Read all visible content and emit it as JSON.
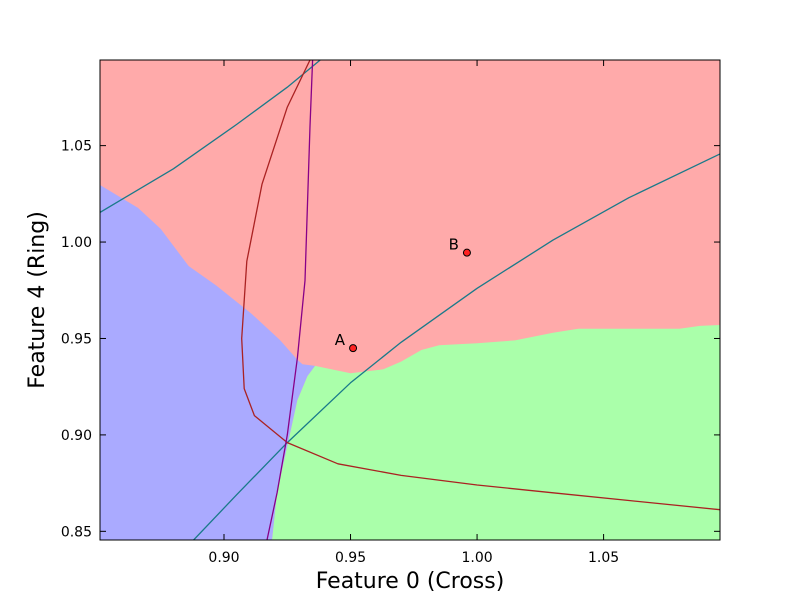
{
  "chart_data": {
    "type": "decision-boundary",
    "xlabel": "Feature 0 (Cross)",
    "ylabel": "Feature 4 (Ring)",
    "xlim": [
      0.851,
      1.096
    ],
    "ylim": [
      0.8455,
      1.0944
    ],
    "x_ticks": [
      {
        "value": 0.9,
        "label": "0.90"
      },
      {
        "value": 0.95,
        "label": "0.95"
      },
      {
        "value": 1.0,
        "label": "1.00"
      },
      {
        "value": 1.05,
        "label": "1.05"
      }
    ],
    "y_ticks": [
      {
        "value": 0.85,
        "label": "0.85"
      },
      {
        "value": 0.9,
        "label": "0.90"
      },
      {
        "value": 0.95,
        "label": "0.95"
      },
      {
        "value": 1.0,
        "label": "1.00"
      },
      {
        "value": 1.05,
        "label": "1.05"
      }
    ],
    "regions": {
      "red": "#ffaaaa",
      "blue": "#aaaaff",
      "green": "#aaffaa",
      "blue_red_boundary": [
        [
          0.851,
          1.0296
        ],
        [
          0.866,
          1.0177
        ],
        [
          0.875,
          1.0068
        ],
        [
          0.886,
          0.9876
        ],
        [
          0.897,
          0.9774
        ],
        [
          0.911,
          0.9627
        ],
        [
          0.922,
          0.9493
        ],
        [
          0.929,
          0.939
        ],
        [
          0.931,
          0.9366
        ],
        [
          0.936,
          0.9358
        ]
      ],
      "blue_green_boundary": [
        [
          0.936,
          0.9358
        ],
        [
          0.933,
          0.9305
        ],
        [
          0.929,
          0.918
        ],
        [
          0.926,
          0.9
        ],
        [
          0.924,
          0.888
        ],
        [
          0.921,
          0.87
        ],
        [
          0.919,
          0.8455
        ]
      ],
      "green_red_boundary": [
        [
          0.936,
          0.9358
        ],
        [
          0.95,
          0.932
        ],
        [
          0.963,
          0.934
        ],
        [
          0.97,
          0.938
        ],
        [
          0.978,
          0.944
        ],
        [
          0.985,
          0.9465
        ],
        [
          1.0,
          0.9475
        ],
        [
          1.015,
          0.949
        ],
        [
          1.03,
          0.953
        ],
        [
          1.04,
          0.955
        ],
        [
          1.08,
          0.955
        ],
        [
          1.088,
          0.9565
        ],
        [
          1.096,
          0.957
        ]
      ]
    },
    "curves": [
      {
        "color": "#1a7a8a",
        "points": [
          [
            0.851,
            1.0154
          ],
          [
            0.88,
            1.038
          ],
          [
            0.905,
            1.061
          ],
          [
            0.925,
            1.0803
          ],
          [
            0.938,
            1.0944
          ]
        ]
      },
      {
        "color": "#1a7a8a",
        "points": [
          [
            0.888,
            0.8455
          ],
          [
            0.905,
            0.869
          ],
          [
            0.925,
            0.896
          ],
          [
            0.95,
            0.927
          ],
          [
            0.97,
            0.948
          ],
          [
            1.0,
            0.976
          ],
          [
            1.03,
            1.001
          ],
          [
            1.06,
            1.023
          ],
          [
            1.096,
            1.0457
          ]
        ]
      },
      {
        "color": "#aa2222",
        "points": [
          [
            0.934,
            1.0944
          ],
          [
            0.925,
            1.07
          ],
          [
            0.915,
            1.03
          ],
          [
            0.909,
            0.99
          ],
          [
            0.907,
            0.95
          ],
          [
            0.908,
            0.924
          ],
          [
            0.912,
            0.91
          ],
          [
            0.925,
            0.896
          ],
          [
            0.945,
            0.885
          ],
          [
            0.97,
            0.879
          ],
          [
            1.0,
            0.874
          ],
          [
            1.03,
            0.87
          ],
          [
            1.06,
            0.866
          ],
          [
            1.096,
            0.8612
          ]
        ]
      },
      {
        "color": "#880088",
        "points": [
          [
            0.917,
            0.8455
          ],
          [
            0.921,
            0.87
          ],
          [
            0.925,
            0.9
          ],
          [
            0.929,
            0.94
          ],
          [
            0.932,
            0.98
          ],
          [
            0.933,
            1.02
          ],
          [
            0.934,
            1.06
          ],
          [
            0.935,
            1.0944
          ]
        ]
      }
    ],
    "points": [
      {
        "label": "A",
        "x": 0.951,
        "y": 0.945,
        "color": "#ff2222"
      },
      {
        "label": "B",
        "x": 0.996,
        "y": 0.9945,
        "color": "#ff2222"
      }
    ]
  }
}
